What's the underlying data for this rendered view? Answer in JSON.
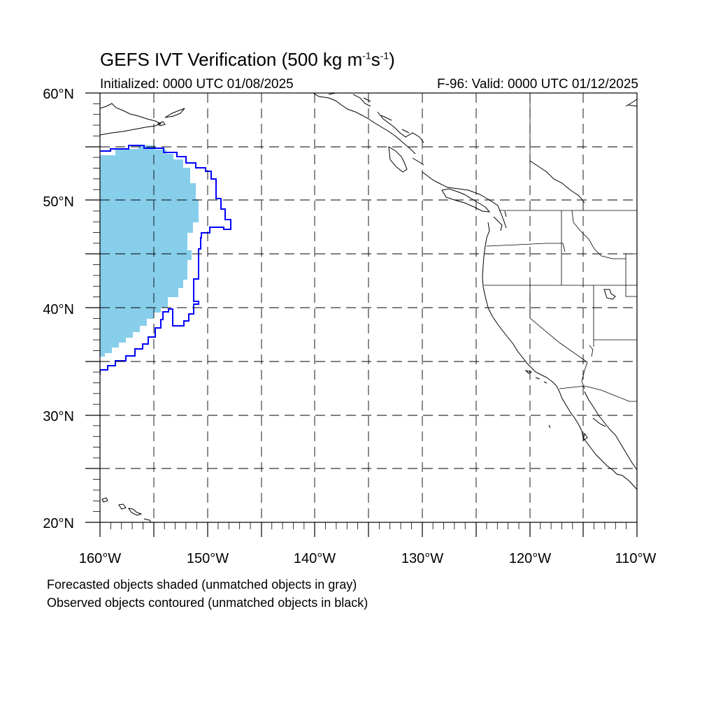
{
  "title": {
    "main": "GEFS IVT Verification (500 kg m",
    "exp1": "-1",
    "mid": "s",
    "exp2": "-1",
    "end": ")"
  },
  "initialized": "Initialized: 0000 UTC 01/08/2025",
  "valid": "F-96: Valid: 0000 UTC 01/12/2025",
  "captions": {
    "forecast": "Forecasted objects shaded (unmatched objects in gray)",
    "observed": "Observed objects contoured (unmatched objects in black)"
  },
  "map": {
    "lon_range": [
      -160,
      -110
    ],
    "lat_range": [
      20,
      60
    ],
    "lat_labels": [
      "60°N",
      "50°N",
      "40°N",
      "30°N",
      "20°N"
    ],
    "lon_labels": [
      "160°W",
      "150°W",
      "140°W",
      "130°W",
      "120°W",
      "110°W"
    ],
    "grid": "dashed every 5°",
    "colors": {
      "forecast_fill": "#87ceeb",
      "observed_contour": "#0000ff",
      "coastline": "#000000",
      "grid": "#000000"
    }
  }
}
